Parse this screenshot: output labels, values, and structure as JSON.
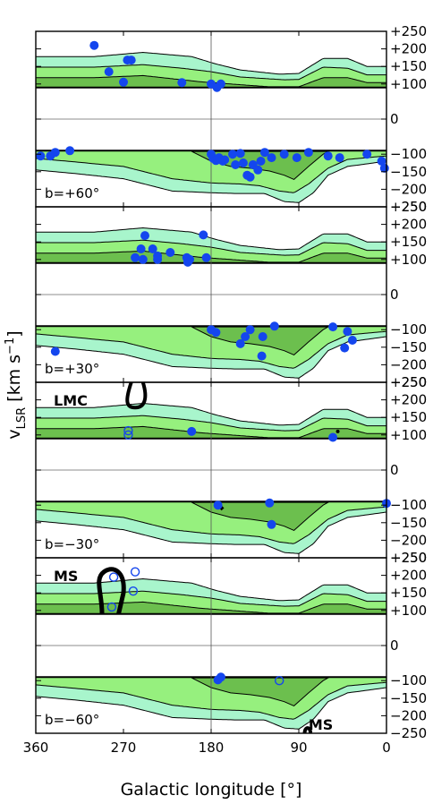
{
  "chart_data": {
    "type": "scatter",
    "xlabel": "Galactic longitude [°]",
    "ylabel_main": "v",
    "ylabel_sub": "LSR",
    "ylabel_unit": "[km s",
    "ylabel_exp": "−1",
    "ylabel_close": "]",
    "xlim": [
      360,
      0
    ],
    "ylim": [
      -250,
      250
    ],
    "x_ticks": [
      360,
      270,
      180,
      90,
      0
    ],
    "x_tick_labels": [
      "360",
      "270",
      "180",
      "90",
      "0"
    ],
    "y_ticks": [
      250,
      200,
      150,
      100,
      0,
      -100,
      -150,
      -200,
      -250
    ],
    "y_tick_labels": [
      "+250",
      "+200",
      "+150",
      "+100",
      "0",
      "−100",
      "−150",
      "−200",
      "−250"
    ],
    "colors": {
      "band_light": "#a8f5cc",
      "band_mid": "#96f07e",
      "band_dark": "#6cbf4e",
      "filled_point": "#1446ee",
      "open_point": "#1446ee",
      "contour": "#000000"
    },
    "panels": [
      {
        "label": "b=+60°",
        "filled_points": [
          [
            300,
            210
          ],
          [
            285,
            135
          ],
          [
            266,
            168
          ],
          [
            262,
            168
          ],
          [
            270,
            105
          ],
          [
            210,
            104
          ],
          [
            180,
            100
          ],
          [
            174,
            90
          ],
          [
            170,
            100
          ],
          [
            355,
            -105
          ],
          [
            345,
            -105
          ],
          [
            340,
            -95
          ],
          [
            325,
            -90
          ],
          [
            180,
            -100
          ],
          [
            178,
            -112
          ],
          [
            175,
            -118
          ],
          [
            172,
            -110
          ],
          [
            168,
            -120
          ],
          [
            166,
            -116
          ],
          [
            158,
            -100
          ],
          [
            155,
            -130
          ],
          [
            150,
            -98
          ],
          [
            147,
            -125
          ],
          [
            143,
            -160
          ],
          [
            140,
            -165
          ],
          [
            137,
            -130
          ],
          [
            132,
            -145
          ],
          [
            129,
            -120
          ],
          [
            125,
            -95
          ],
          [
            118,
            -110
          ],
          [
            105,
            -100
          ],
          [
            92,
            -110
          ],
          [
            80,
            -95
          ],
          [
            60,
            -105
          ],
          [
            48,
            -110
          ],
          [
            20,
            -100
          ],
          [
            5,
            -120
          ],
          [
            2,
            -140
          ]
        ],
        "open_points": []
      },
      {
        "label": "b=+30°",
        "filled_points": [
          [
            248,
            168
          ],
          [
            240,
            130
          ],
          [
            235,
            110
          ],
          [
            235,
            100
          ],
          [
            222,
            120
          ],
          [
            205,
            105
          ],
          [
            204,
            92
          ],
          [
            202,
            100
          ],
          [
            258,
            105
          ],
          [
            252,
            130
          ],
          [
            250,
            100
          ],
          [
            188,
            170
          ],
          [
            185,
            105
          ],
          [
            340,
            -162
          ],
          [
            180,
            -100
          ],
          [
            175,
            -108
          ],
          [
            150,
            -140
          ],
          [
            128,
            -175
          ],
          [
            127,
            -120
          ],
          [
            145,
            -120
          ],
          [
            140,
            -100
          ],
          [
            115,
            -90
          ],
          [
            55,
            -92
          ],
          [
            43,
            -152
          ],
          [
            35,
            -130
          ],
          [
            40,
            -105
          ]
        ],
        "open_points": []
      },
      {
        "label": "b=−30°",
        "filled_points": [
          [
            200,
            110
          ],
          [
            55,
            93
          ],
          [
            173,
            -100
          ],
          [
            120,
            -94
          ],
          [
            118,
            -155
          ],
          [
            0,
            -95
          ]
        ],
        "open_points": [
          [
            265,
            100
          ],
          [
            265,
            112
          ]
        ],
        "region_label": "LMC"
      },
      {
        "label": "b=−60°",
        "filled_points": [
          [
            173,
            -98
          ],
          [
            170,
            -90
          ]
        ],
        "open_points": [
          [
            280,
            195
          ],
          [
            258,
            210
          ],
          [
            260,
            155
          ],
          [
            282,
            110
          ],
          [
            110,
            -100
          ]
        ],
        "region_label": "MS",
        "region_label_2": "MS"
      }
    ]
  }
}
